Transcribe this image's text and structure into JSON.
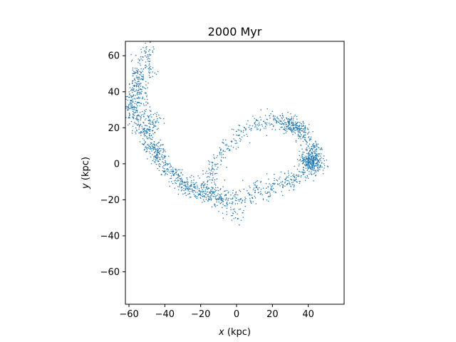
{
  "chart_data": {
    "type": "scatter",
    "title": "2000 Myr",
    "xlabel_var": "x",
    "xlabel_unit": " (kpc)",
    "ylabel_var": "y",
    "ylabel_unit": " (kpc)",
    "xlim": [
      -62,
      60
    ],
    "ylim": [
      -78,
      68
    ],
    "x_ticks": [
      -60,
      -40,
      -20,
      0,
      20,
      40
    ],
    "y_ticks": [
      -60,
      -40,
      -20,
      0,
      20,
      40,
      60
    ],
    "x_tick_labels": [
      "−60",
      "−40",
      "−20",
      "0",
      "20",
      "40"
    ],
    "y_tick_labels": [
      "−60",
      "−40",
      "−20",
      "0",
      "20",
      "40",
      "60"
    ],
    "grid": false,
    "legend": "none",
    "marker_color": "#1f77b4",
    "series": [
      {
        "points": [
          [
            -49,
            65
          ],
          [
            -51,
            61
          ],
          [
            -53,
            56
          ],
          [
            -55,
            50
          ],
          [
            -57,
            43
          ],
          [
            -58,
            36
          ],
          [
            -58,
            31
          ],
          [
            -57,
            27
          ],
          [
            -54,
            23
          ],
          [
            -52,
            19
          ],
          [
            -50,
            15
          ],
          [
            -48,
            11
          ],
          [
            -46,
            7
          ],
          [
            -44,
            4
          ],
          [
            -41,
            0
          ],
          [
            -38,
            -3
          ],
          [
            -35,
            -6
          ],
          [
            -32,
            -9
          ],
          [
            -28,
            -12
          ],
          [
            -24,
            -14
          ],
          [
            -20,
            -16
          ],
          [
            -16,
            -17
          ],
          [
            -10,
            -18
          ],
          [
            -4,
            -19
          ],
          [
            2,
            -19
          ],
          [
            8,
            -18
          ],
          [
            14,
            -16
          ],
          [
            20,
            -14
          ],
          [
            26,
            -12
          ],
          [
            32,
            -10
          ],
          [
            38,
            -6
          ],
          [
            42,
            -3
          ],
          [
            44,
            0
          ],
          [
            44,
            3
          ],
          [
            43,
            7
          ],
          [
            41,
            11
          ],
          [
            38,
            16
          ],
          [
            34,
            20
          ],
          [
            29,
            23
          ],
          [
            24,
            24
          ],
          [
            18,
            23
          ],
          [
            12,
            22
          ],
          [
            6,
            19
          ],
          [
            0,
            15
          ],
          [
            -5,
            10
          ],
          [
            -9,
            5
          ],
          [
            -12,
            0
          ],
          [
            -14,
            -5
          ],
          [
            -14,
            -10
          ],
          [
            -13,
            -15
          ],
          [
            -10,
            -20
          ],
          [
            -6,
            -24
          ],
          [
            -2,
            -27
          ],
          [
            2,
            -29
          ],
          [
            -12,
            -19
          ],
          [
            -18,
            -14
          ],
          [
            10,
            -13
          ],
          [
            22,
            -9
          ],
          [
            30,
            -7
          ],
          [
            38,
            2
          ],
          [
            40,
            1
          ],
          [
            42,
            2
          ],
          [
            36,
            18
          ],
          [
            31,
            21
          ],
          [
            28,
            22
          ],
          [
            -56,
            45
          ],
          [
            -52,
            35
          ],
          [
            -47,
            20
          ],
          [
            -44,
            10
          ],
          [
            -42,
            4
          ],
          [
            -30,
            -10
          ],
          [
            -26,
            -14
          ],
          [
            -50,
            28
          ],
          [
            -46,
            24
          ],
          [
            -54,
            40
          ],
          [
            -48,
            51
          ]
        ],
        "density": [
          5,
          7,
          9,
          12,
          14,
          14,
          13,
          12,
          12,
          12,
          12,
          11,
          11,
          10,
          10,
          10,
          10,
          10,
          10,
          10,
          10,
          10,
          9,
          9,
          9,
          8,
          8,
          8,
          8,
          9,
          10,
          14,
          22,
          18,
          12,
          12,
          12,
          12,
          12,
          11,
          10,
          9,
          8,
          8,
          8,
          7,
          7,
          7,
          6,
          6,
          6,
          5,
          5,
          4,
          8,
          8,
          6,
          6,
          6,
          16,
          18,
          16,
          14,
          14,
          12,
          8,
          8,
          8,
          8,
          8,
          8,
          8,
          8,
          8,
          8,
          8
        ]
      }
    ]
  }
}
